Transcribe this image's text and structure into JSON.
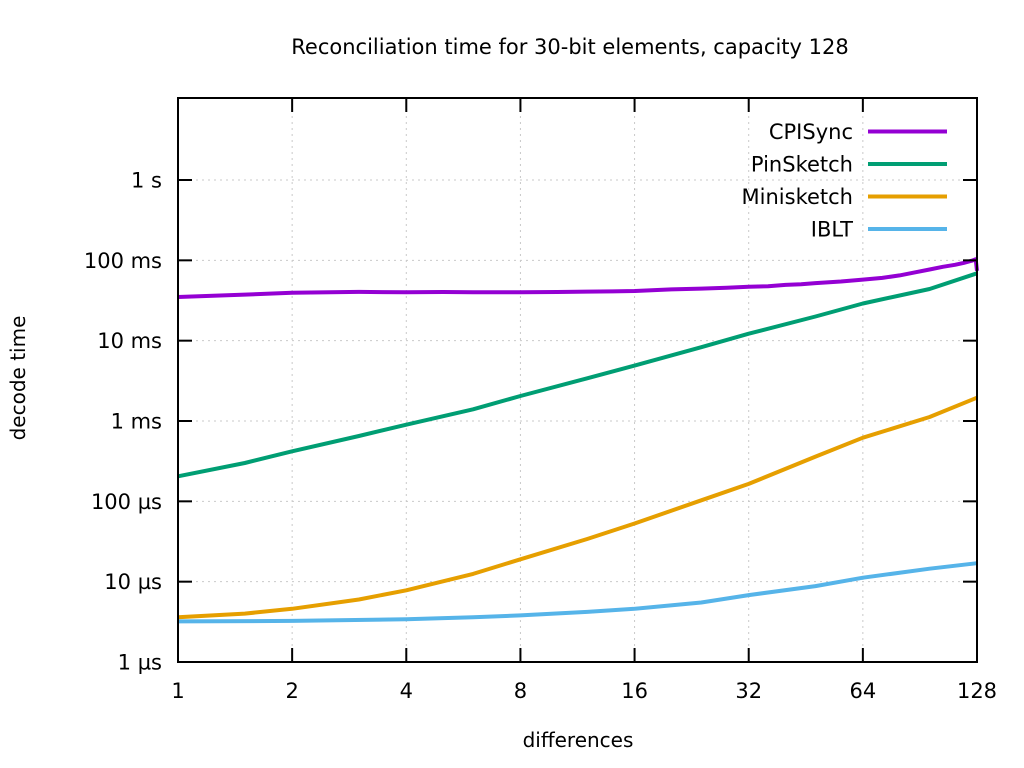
{
  "page": {
    "background": "#ffffff",
    "text_color": "#000000"
  },
  "chart_data": {
    "type": "line",
    "title": "Reconciliation time for 30-bit elements, capacity 128",
    "xlabel": "differences",
    "ylabel": "decode time",
    "x_scale": "log2",
    "y_scale": "log10",
    "grid": true,
    "legend_position": "top-right-inside",
    "axis_color": "#000000",
    "grid_color": "#c9c9c9",
    "x_range": [
      1,
      128
    ],
    "y_range_us": [
      1,
      10500000
    ],
    "x_ticks": [
      1,
      2,
      4,
      8,
      16,
      32,
      64,
      128
    ],
    "y_ticks": [
      {
        "label": "1 µs",
        "us": 1
      },
      {
        "label": "10 µs",
        "us": 10
      },
      {
        "label": "100 µs",
        "us": 100
      },
      {
        "label": "1 ms",
        "us": 1000
      },
      {
        "label": "10 ms",
        "us": 10000
      },
      {
        "label": "100 ms",
        "us": 100000
      },
      {
        "label": "1 s",
        "us": 1000000
      }
    ],
    "series": [
      {
        "name": "CPISync",
        "color": "#9400d3",
        "points_us": [
          [
            1,
            35000
          ],
          [
            1.5,
            37500
          ],
          [
            2,
            39500
          ],
          [
            3,
            40500
          ],
          [
            4,
            40000
          ],
          [
            5,
            40300
          ],
          [
            6,
            40100
          ],
          [
            8,
            40000
          ],
          [
            10,
            40400
          ],
          [
            12,
            40800
          ],
          [
            14,
            41000
          ],
          [
            16,
            41500
          ],
          [
            20,
            43500
          ],
          [
            24,
            44500
          ],
          [
            28,
            45500
          ],
          [
            32,
            47000
          ],
          [
            36,
            47500
          ],
          [
            40,
            49500
          ],
          [
            44,
            50500
          ],
          [
            48,
            52000
          ],
          [
            56,
            54500
          ],
          [
            64,
            57500
          ],
          [
            72,
            60500
          ],
          [
            80,
            65000
          ],
          [
            88,
            71000
          ],
          [
            96,
            77000
          ],
          [
            104,
            83000
          ],
          [
            112,
            88000
          ],
          [
            118,
            93000
          ],
          [
            124,
            99000
          ],
          [
            127,
            103000
          ],
          [
            128,
            74000
          ]
        ]
      },
      {
        "name": "PinSketch",
        "color": "#009e73",
        "points_us": [
          [
            1,
            205
          ],
          [
            1.5,
            300
          ],
          [
            2,
            420
          ],
          [
            3,
            650
          ],
          [
            4,
            900
          ],
          [
            6,
            1400
          ],
          [
            8,
            2050
          ],
          [
            12,
            3400
          ],
          [
            16,
            4900
          ],
          [
            24,
            8300
          ],
          [
            32,
            12200
          ],
          [
            48,
            20000
          ],
          [
            64,
            29000
          ],
          [
            96,
            44000
          ],
          [
            128,
            69000
          ]
        ]
      },
      {
        "name": "Minisketch",
        "color": "#e69f00",
        "points_us": [
          [
            1,
            3.6
          ],
          [
            1.5,
            4.0
          ],
          [
            2,
            4.6
          ],
          [
            3,
            6.0
          ],
          [
            4,
            7.8
          ],
          [
            6,
            12.5
          ],
          [
            8,
            19
          ],
          [
            12,
            34
          ],
          [
            16,
            53
          ],
          [
            24,
            103
          ],
          [
            32,
            165
          ],
          [
            48,
            360
          ],
          [
            64,
            620
          ],
          [
            96,
            1120
          ],
          [
            128,
            1950
          ]
        ]
      },
      {
        "name": "IBLT",
        "color": "#56b4e9",
        "points_us": [
          [
            1,
            3.2
          ],
          [
            2,
            3.25
          ],
          [
            4,
            3.4
          ],
          [
            6,
            3.6
          ],
          [
            8,
            3.8
          ],
          [
            12,
            4.2
          ],
          [
            16,
            4.6
          ],
          [
            24,
            5.5
          ],
          [
            32,
            6.8
          ],
          [
            48,
            8.8
          ],
          [
            64,
            11.2
          ],
          [
            96,
            14.5
          ],
          [
            128,
            17
          ]
        ]
      }
    ]
  }
}
